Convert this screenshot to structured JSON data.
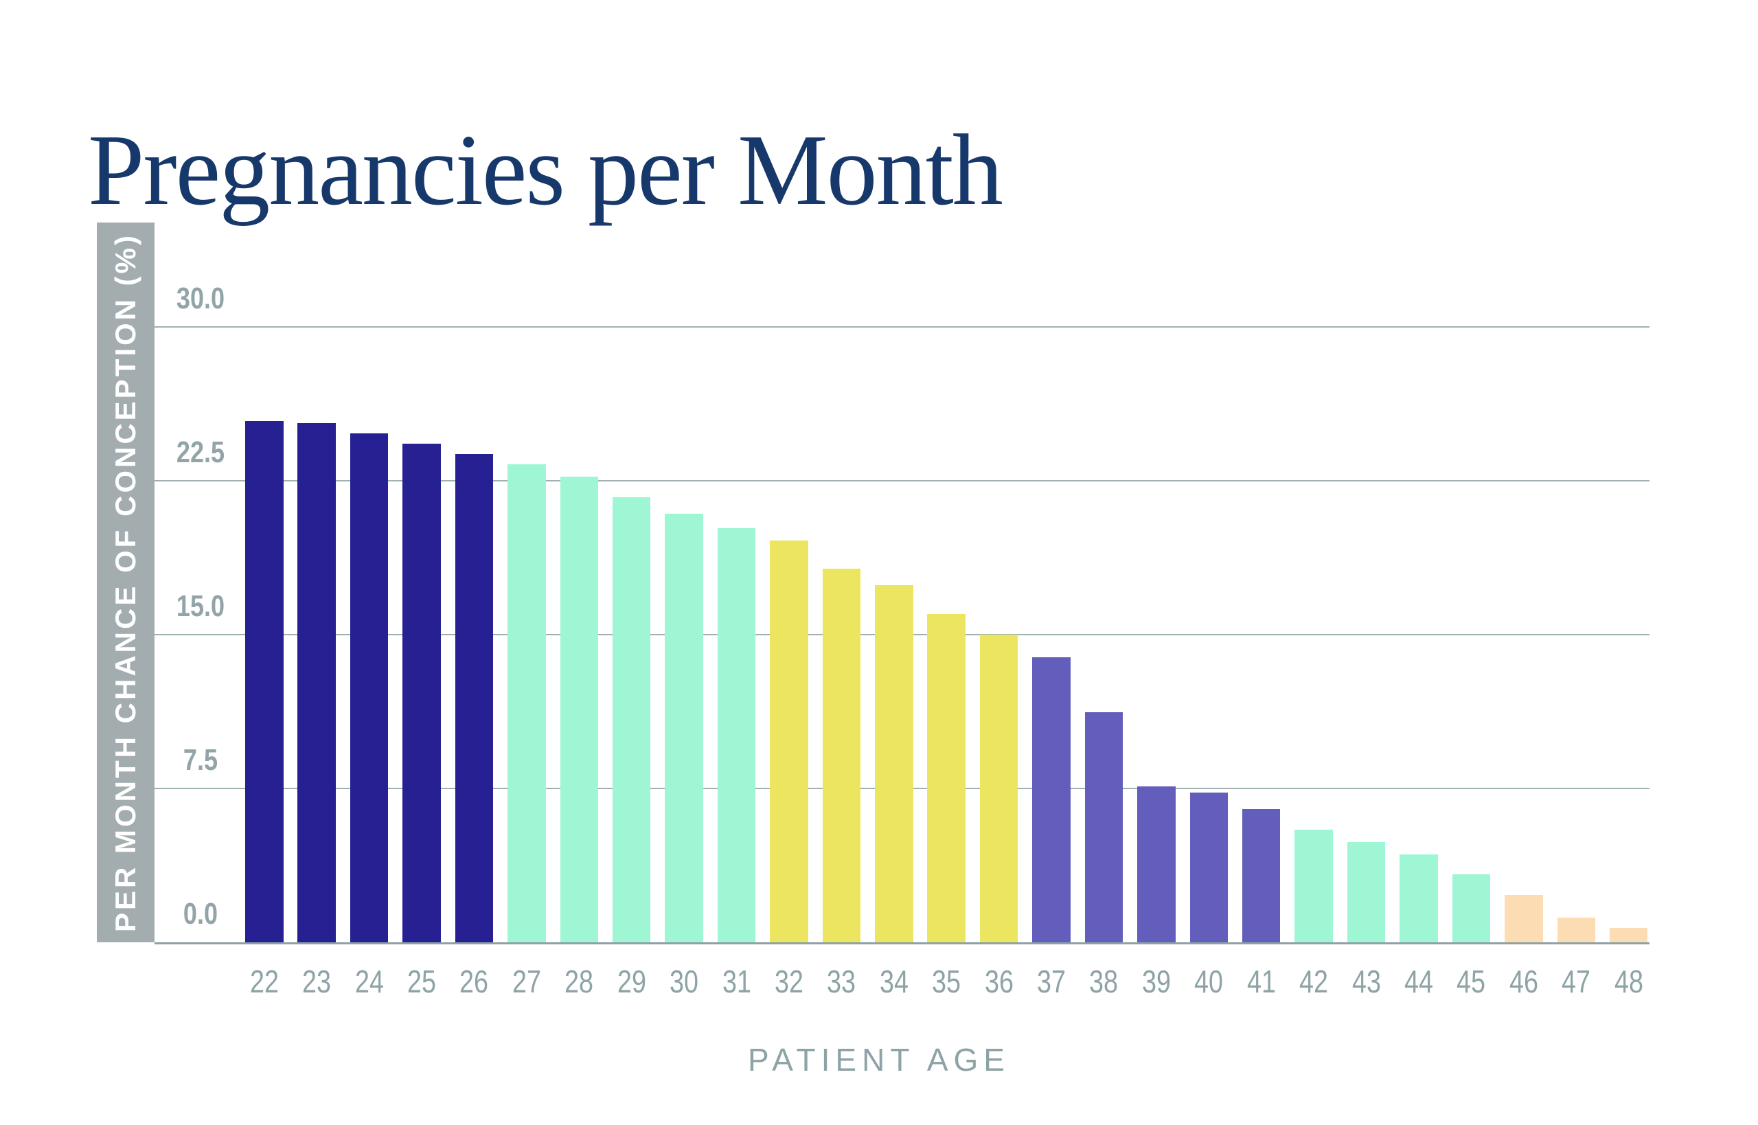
{
  "title": "Pregnancies per Month",
  "y_axis": {
    "label": "PER MONTH CHANCE OF CONCEPTION (%)",
    "ticks": [
      "30.0",
      "22.5",
      "15.0",
      "7.5",
      "0.0"
    ]
  },
  "x_axis": {
    "label": "PATIENT AGE"
  },
  "colors": {
    "title_navy": "#17386A",
    "axis_bar_gray": "#A3ADB0",
    "axis_text_gray": "#8EA3A6",
    "tick_text_gray": "#93A4A9",
    "gridline_gray": "#9FB0B2",
    "group_navy": "#262093",
    "group_mint": "#9FF6D5",
    "group_yellow": "#ECE55F",
    "group_purple": "#635DBB",
    "group_peach": "#FCDCB2"
  },
  "chart_data": {
    "type": "bar",
    "title": "Pregnancies per Month",
    "xlabel": "PATIENT AGE",
    "ylabel": "PER MONTH CHANCE OF CONCEPTION (%)",
    "ylim": [
      0,
      30
    ],
    "grid": true,
    "legend": "none",
    "yticks": [
      {
        "label": "30.0",
        "value": 30.0
      },
      {
        "label": "22.5",
        "value": 22.5
      },
      {
        "label": "15.0",
        "value": 15.0
      },
      {
        "label": "7.5",
        "value": 7.5
      },
      {
        "label": "0.0",
        "value": 0.0
      }
    ],
    "categories": [
      "22",
      "23",
      "24",
      "25",
      "26",
      "27",
      "28",
      "29",
      "30",
      "31",
      "32",
      "33",
      "34",
      "35",
      "36",
      "37",
      "38",
      "39",
      "40",
      "41",
      "42",
      "43",
      "44",
      "45",
      "46",
      "47",
      "48"
    ],
    "values": [
      25.4,
      25.3,
      24.8,
      24.3,
      23.8,
      23.3,
      22.7,
      21.7,
      20.9,
      20.2,
      19.6,
      18.2,
      17.4,
      16.0,
      15.0,
      13.9,
      11.2,
      7.6,
      7.3,
      6.5,
      5.5,
      4.9,
      4.3,
      3.3,
      2.3,
      1.2,
      0.7
    ],
    "bar_colors": [
      "#262093",
      "#262093",
      "#262093",
      "#262093",
      "#262093",
      "#9FF6D5",
      "#9FF6D5",
      "#9FF6D5",
      "#9FF6D5",
      "#9FF6D5",
      "#ECE55F",
      "#ECE55F",
      "#ECE55F",
      "#ECE55F",
      "#ECE55F",
      "#635DBB",
      "#635DBB",
      "#635DBB",
      "#635DBB",
      "#635DBB",
      "#9FF6D5",
      "#9FF6D5",
      "#9FF6D5",
      "#9FF6D5",
      "#FCDCB2",
      "#FCDCB2",
      "#FCDCB2"
    ],
    "color_groups": [
      {
        "ages": "22-26",
        "color": "#262093"
      },
      {
        "ages": "27-31",
        "color": "#9FF6D5"
      },
      {
        "ages": "32-36",
        "color": "#ECE55F"
      },
      {
        "ages": "37-41",
        "color": "#635DBB"
      },
      {
        "ages": "42-45",
        "color": "#9FF6D5"
      },
      {
        "ages": "46-48",
        "color": "#FCDCB2"
      }
    ]
  }
}
